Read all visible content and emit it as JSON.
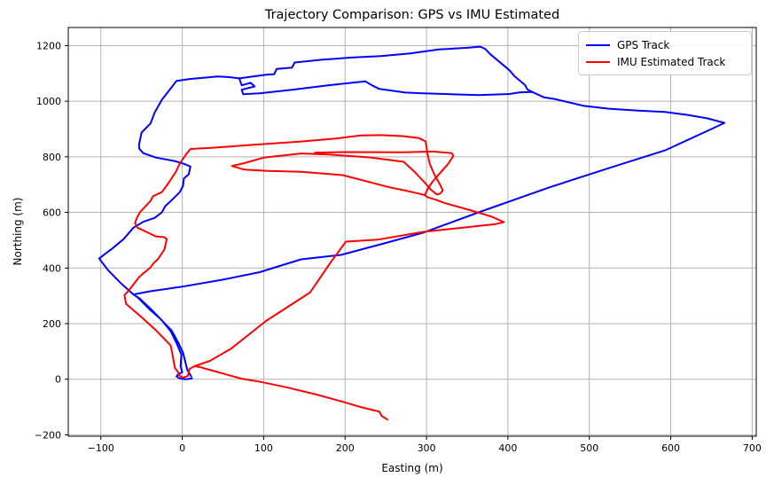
{
  "figure": {
    "background": "#ffffff"
  },
  "chart_data": {
    "type": "line",
    "title": "Trajectory Comparison: GPS vs IMU Estimated",
    "xlabel": "Easting (m)",
    "ylabel": "Northing (m)",
    "xlim": [
      -140,
      705
    ],
    "ylim": [
      -205,
      1265
    ],
    "xticks": [
      -100,
      0,
      100,
      200,
      300,
      400,
      500,
      600,
      700
    ],
    "yticks": [
      -200,
      0,
      200,
      400,
      600,
      800,
      1000,
      1200
    ],
    "grid": true,
    "grid_color": "#b2b2b2",
    "spine_color": "#000000",
    "tick_label_size": 11,
    "legend_position": "upper right",
    "series": [
      {
        "name": "GPS Track",
        "color": "#0000ff",
        "linewidth": 2,
        "paths": [
          [
            [
              12,
              3
            ],
            [
              4,
              0
            ],
            [
              -3,
              3
            ],
            [
              -7,
              10
            ],
            [
              -5,
              18
            ],
            [
              0,
              26
            ],
            [
              -2,
              45
            ],
            [
              -1,
              89
            ],
            [
              -7,
              130
            ],
            [
              -14,
              172
            ],
            [
              -26,
              215
            ],
            [
              -39,
              248
            ],
            [
              -55,
              295
            ],
            [
              -60,
              305
            ],
            [
              -75,
              344
            ],
            [
              -91,
              392
            ],
            [
              -102,
              434
            ],
            [
              -95,
              450
            ],
            [
              -86,
              470
            ],
            [
              -72,
              504
            ],
            [
              -60,
              545
            ],
            [
              -48,
              566
            ],
            [
              -34,
              580
            ],
            [
              -25,
              600
            ],
            [
              -21,
              622
            ],
            [
              -14,
              641
            ],
            [
              -3,
              673
            ],
            [
              1,
              696
            ],
            [
              2,
              722
            ],
            [
              8,
              737
            ],
            [
              10,
              765
            ],
            [
              2,
              775
            ],
            [
              -10,
              785
            ],
            [
              -32,
              797
            ],
            [
              -48,
              813
            ],
            [
              -53,
              830
            ],
            [
              -53,
              845
            ],
            [
              -50,
              887
            ],
            [
              -39,
              920
            ],
            [
              -34,
              958
            ],
            [
              -25,
              1005
            ],
            [
              -13,
              1050
            ],
            [
              -7,
              1073
            ],
            [
              10,
              1080
            ],
            [
              26,
              1084
            ],
            [
              43,
              1089
            ],
            [
              59,
              1086
            ],
            [
              70,
              1082
            ],
            [
              85,
              1088
            ],
            [
              103,
              1095
            ],
            [
              113,
              1097
            ],
            [
              116,
              1116
            ],
            [
              135,
              1121
            ],
            [
              138,
              1139
            ],
            [
              171,
              1149
            ],
            [
              208,
              1157
            ],
            [
              244,
              1162
            ],
            [
              280,
              1172
            ],
            [
              315,
              1186
            ],
            [
              350,
              1192
            ],
            [
              366,
              1196
            ],
            [
              372,
              1188
            ],
            [
              378,
              1170
            ],
            [
              391,
              1138
            ],
            [
              402,
              1111
            ],
            [
              408,
              1090
            ],
            [
              421,
              1058
            ],
            [
              424,
              1042
            ],
            [
              430,
              1033
            ],
            [
              444,
              1014
            ],
            [
              457,
              1008
            ],
            [
              493,
              983
            ],
            [
              524,
              973
            ],
            [
              560,
              966
            ],
            [
              593,
              961
            ],
            [
              620,
              951
            ],
            [
              645,
              938
            ],
            [
              666,
              922
            ],
            [
              650,
              900
            ],
            [
              593,
              823
            ],
            [
              530,
              765
            ],
            [
              451,
              690
            ],
            [
              364,
              600
            ],
            [
              296,
              527
            ],
            [
              250,
              490
            ],
            [
              195,
              447
            ],
            [
              146,
              431
            ],
            [
              95,
              385
            ],
            [
              50,
              358
            ],
            [
              0,
              333
            ],
            [
              -40,
              316
            ],
            [
              -60,
              305
            ],
            [
              -52,
              290
            ],
            [
              -36,
              245
            ],
            [
              -13,
              175
            ],
            [
              -5,
              132
            ],
            [
              1,
              95
            ],
            [
              4,
              60
            ],
            [
              6,
              35
            ],
            [
              9,
              20
            ],
            [
              11,
              10
            ]
          ],
          [
            [
              70,
              1082
            ],
            [
              73,
              1057
            ],
            [
              84,
              1066
            ],
            [
              89,
              1053
            ],
            [
              73,
              1041
            ],
            [
              75,
              1025
            ],
            [
              95,
              1028
            ],
            [
              135,
              1041
            ],
            [
              179,
              1057
            ],
            [
              208,
              1066
            ],
            [
              225,
              1071
            ],
            [
              233,
              1057
            ],
            [
              242,
              1044
            ],
            [
              274,
              1031
            ],
            [
              296,
              1028
            ],
            [
              364,
              1022
            ],
            [
              402,
              1026
            ],
            [
              415,
              1032
            ],
            [
              430,
              1033
            ]
          ]
        ]
      },
      {
        "name": "IMU Estimated Track",
        "color": "#ff0000",
        "linewidth": 2,
        "paths": [
          [
            [
              252,
              -145
            ],
            [
              245,
              -132
            ],
            [
              242,
              -116
            ],
            [
              237,
              -113
            ],
            [
              219,
              -100
            ],
            [
              197,
              -81
            ],
            [
              165,
              -55
            ],
            [
              128,
              -29
            ],
            [
              97,
              -10
            ],
            [
              73,
              2
            ],
            [
              37,
              31
            ],
            [
              20,
              45
            ],
            [
              15,
              47
            ],
            [
              9,
              37
            ],
            [
              8,
              25
            ],
            [
              7,
              12
            ],
            [
              1,
              5
            ],
            [
              -3,
              12
            ],
            [
              -5,
              25
            ],
            [
              -9,
              41
            ],
            [
              -14,
              121
            ],
            [
              -32,
              175
            ],
            [
              -50,
              223
            ],
            [
              -69,
              271
            ],
            [
              -71,
              303
            ],
            [
              -66,
              318
            ],
            [
              -53,
              367
            ],
            [
              -49,
              378
            ],
            [
              -39,
              402
            ],
            [
              -35,
              418
            ],
            [
              -30,
              431
            ],
            [
              -22,
              466
            ],
            [
              -19,
              504
            ],
            [
              -22,
              511
            ],
            [
              -33,
              514
            ],
            [
              -44,
              530
            ],
            [
              -55,
              545
            ],
            [
              -58,
              562
            ],
            [
              -56,
              578
            ],
            [
              -52,
              600
            ],
            [
              -47,
              616
            ],
            [
              -39,
              641
            ],
            [
              -36,
              658
            ],
            [
              -25,
              673
            ],
            [
              -17,
              705
            ],
            [
              -8,
              745
            ],
            [
              -3,
              776
            ],
            [
              5,
              810
            ],
            [
              10,
              828
            ],
            [
              40,
              833
            ],
            [
              80,
              842
            ],
            [
              146,
              855
            ],
            [
              190,
              866
            ],
            [
              219,
              877
            ],
            [
              245,
              878
            ],
            [
              272,
              874
            ],
            [
              291,
              867
            ],
            [
              299,
              855
            ],
            [
              301,
              814
            ],
            [
              304,
              775
            ],
            [
              310,
              734
            ],
            [
              315,
              709
            ],
            [
              318,
              692
            ],
            [
              320,
              679
            ],
            [
              317,
              668
            ],
            [
              313,
              664
            ],
            [
              306,
              680
            ],
            [
              297,
              710
            ],
            [
              286,
              744
            ],
            [
              272,
              782
            ],
            [
              230,
              798
            ],
            [
              180,
              808
            ],
            [
              146,
              812
            ],
            [
              100,
              797
            ],
            [
              76,
              777
            ],
            [
              61,
              767
            ],
            [
              76,
              754
            ],
            [
              105,
              749
            ],
            [
              146,
              746
            ],
            [
              197,
              734
            ],
            [
              255,
              690
            ],
            [
              272,
              680
            ],
            [
              290,
              668
            ],
            [
              298,
              662
            ],
            [
              301,
              655
            ],
            [
              312,
              645
            ],
            [
              323,
              633
            ],
            [
              355,
              607
            ],
            [
              380,
              585
            ],
            [
              395,
              565
            ],
            [
              385,
              558
            ],
            [
              350,
              547
            ],
            [
              296,
              530
            ],
            [
              240,
              502
            ],
            [
              201,
              495
            ],
            [
              182,
              419
            ],
            [
              157,
              312
            ],
            [
              103,
              210
            ],
            [
              60,
              110
            ],
            [
              34,
              66
            ],
            [
              15,
              47
            ]
          ],
          [
            [
              163,
              815
            ],
            [
              200,
              817
            ],
            [
              272,
              816
            ],
            [
              307,
              819
            ],
            [
              331,
              813
            ],
            [
              333,
              803
            ],
            [
              326,
              772
            ],
            [
              315,
              736
            ],
            [
              307,
              709
            ],
            [
              302,
              687
            ],
            [
              298,
              662
            ]
          ]
        ]
      }
    ]
  }
}
